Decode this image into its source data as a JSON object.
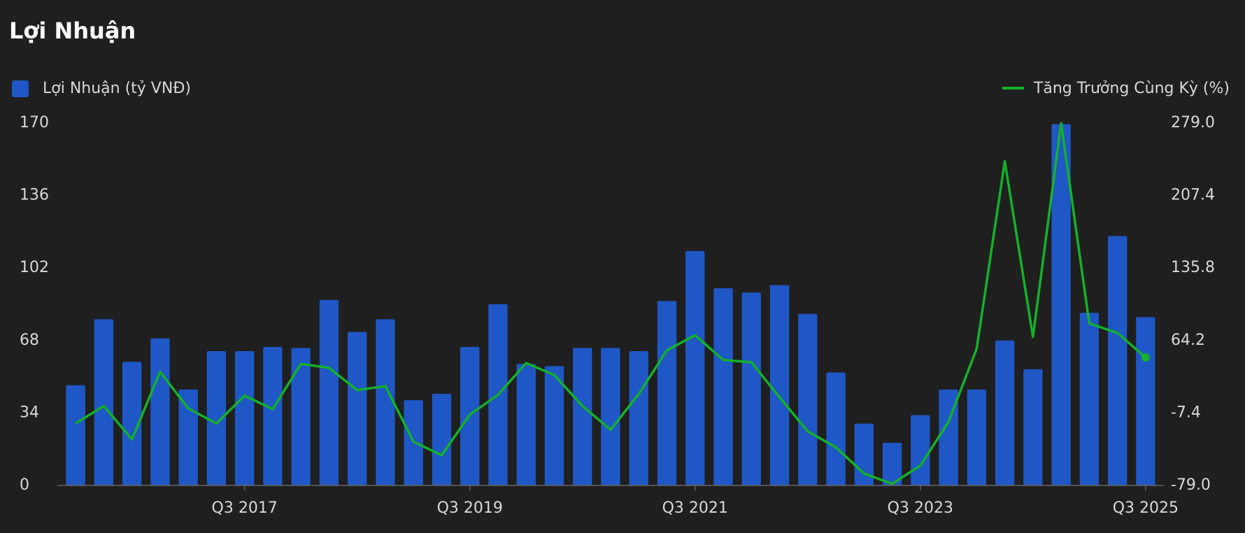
{
  "chart_data": {
    "type": "bar",
    "title": "Lợi Nhuận",
    "categories": [
      null,
      null,
      null,
      null,
      null,
      null,
      "Q3 2017",
      null,
      null,
      null,
      null,
      null,
      null,
      null,
      "Q3 2019",
      null,
      null,
      null,
      null,
      null,
      null,
      null,
      "Q3 2021",
      null,
      null,
      null,
      null,
      null,
      null,
      null,
      "Q3 2023",
      null,
      null,
      null,
      null,
      null,
      null,
      null,
      "Q3 2025"
    ],
    "series": [
      {
        "name": "Lợi Nhuận (tỷ VNĐ)",
        "type": "bar",
        "color": "#1f57c6",
        "values": [
          47,
          78,
          58,
          69,
          45,
          63,
          63,
          65,
          64.5,
          87,
          72,
          78,
          40,
          43,
          65,
          85,
          57,
          56,
          64.5,
          64.5,
          63,
          86.5,
          110,
          92.5,
          90.5,
          94,
          80.5,
          53,
          29,
          20,
          33,
          45,
          45,
          68,
          54.5,
          169.5,
          81,
          117,
          79
        ]
      },
      {
        "name": "Tăng Trưởng Cùng Kỳ (%)",
        "type": "line",
        "axis": "y2",
        "color": "#16b02a",
        "values": [
          -17.8,
          -0.5,
          -33.5,
          33.3,
          -2.9,
          -17.8,
          9.7,
          -3.6,
          41.1,
          37.2,
          15.2,
          19.1,
          -35.8,
          -49.2,
          -9.1,
          10.5,
          41.9,
          30.1,
          -0.5,
          -24,
          11.3,
          54.5,
          69.4,
          45,
          42.7,
          8.1,
          -25.6,
          -41.3,
          -67.2,
          -77.4,
          -59.4,
          -16.2,
          56,
          241.3,
          67.8,
          279,
          81.1,
          71.7,
          47.4
        ]
      }
    ],
    "ylim": [
      0,
      170
    ],
    "yticks": [
      0,
      34,
      68,
      102,
      136,
      170
    ],
    "y2lim": [
      -79,
      279
    ],
    "y2ticks": [
      {
        "value": -79,
        "label": "-79.0"
      },
      {
        "value": -7.4,
        "label": "-7.4"
      },
      {
        "value": 64.2,
        "label": "64.2"
      },
      {
        "value": 135.8,
        "label": "135.8"
      },
      {
        "value": 207.4,
        "label": "207.4"
      },
      {
        "value": 279,
        "label": "279.0"
      }
    ]
  }
}
